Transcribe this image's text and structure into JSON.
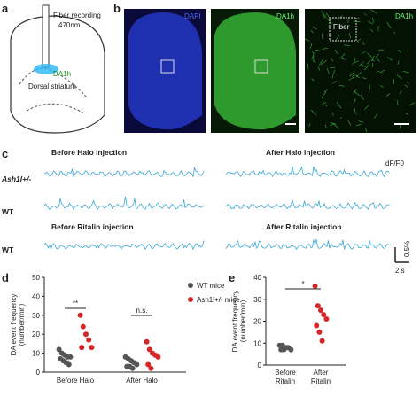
{
  "panel_labels": [
    "a",
    "b",
    "c",
    "d",
    "e"
  ],
  "schematic": {
    "fiber_label": [
      "Fiber recording",
      "470nm"
    ],
    "sensor": "DA1h",
    "region": "Dorsal striatum"
  },
  "images": [
    {
      "label": "DAPI"
    },
    {
      "label": "DA1h"
    },
    {
      "label": "DA1h",
      "inset": "Fiber"
    }
  ],
  "traces": {
    "headers": [
      "Before Halo injection",
      "After Halo injection",
      "Before Ritalin injection",
      "After Ritalin injection"
    ],
    "rows": [
      "Ash1l+/-",
      "WT",
      "WT"
    ],
    "unit": "dF/F0",
    "scale_y": "0.5%",
    "scale_x": "2 s"
  },
  "chart_data": [
    {
      "type": "strip",
      "ylabel": [
        "DA event frequency",
        "(number/min)"
      ],
      "categories": [
        "Before Halo",
        "After Halo"
      ],
      "series": [
        {
          "name": "WT mice",
          "color": "#555555",
          "values": [
            [
              12,
              10,
              9,
              8,
              8,
              7,
              6,
              5,
              4
            ],
            [
              8,
              7,
              6,
              5,
              4,
              3,
              3,
              2
            ]
          ]
        },
        {
          "name": "Ash1l+/- mice",
          "color": "#d62728",
          "values": [
            [
              30,
              24,
              20,
              17,
              13,
              13
            ],
            [
              16,
              12,
              10,
              9,
              8,
              4,
              2
            ]
          ]
        }
      ],
      "ylim": [
        0,
        50
      ],
      "yticks": [
        0,
        10,
        20,
        30,
        40,
        50
      ],
      "annotations": [
        "**",
        "n.s."
      ]
    },
    {
      "type": "strip",
      "ylabel": [
        "DA event frequency",
        "(number/min)"
      ],
      "categories": [
        [
          "Before",
          "Ritalin"
        ],
        [
          "After",
          "Ritalin"
        ]
      ],
      "series": [
        {
          "color": "#555555",
          "values": [
            [
              9,
              9,
              8,
              8,
              7,
              7,
              7,
              8
            ],
            null
          ]
        },
        {
          "color": "#d62728",
          "values": [
            null,
            [
              36,
              27,
              25,
              23,
              21,
              18,
              15,
              11
            ]
          ]
        }
      ],
      "ylim": [
        0,
        40
      ],
      "yticks": [
        0,
        10,
        20,
        30,
        40
      ],
      "annotations": [
        "*"
      ]
    }
  ]
}
